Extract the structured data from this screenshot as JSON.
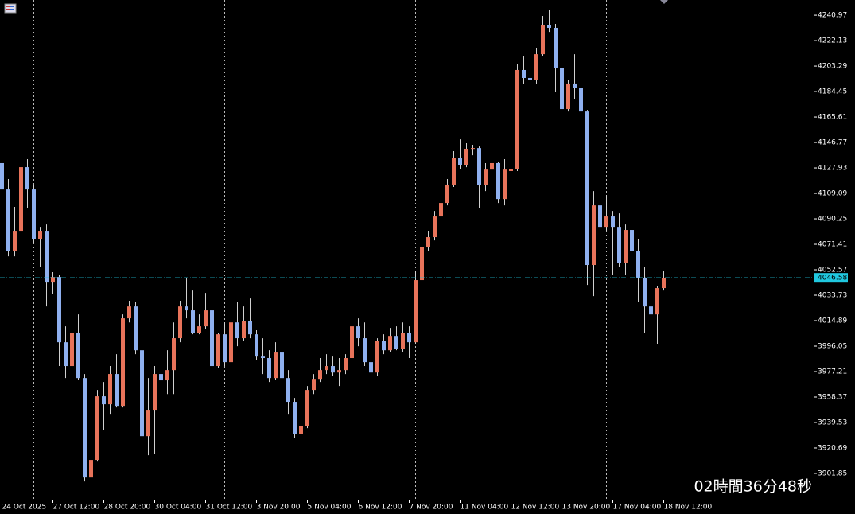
{
  "chart_data": {
    "type": "candlestick",
    "categories": [
      "24 Oct 2025",
      null,
      null,
      null,
      null,
      null,
      null,
      null,
      "27 Oct 12:00",
      null,
      null,
      null,
      null,
      null,
      null,
      null,
      "28 Oct 20:00",
      null,
      null,
      null,
      null,
      null,
      null,
      null,
      "30 Oct 04:00",
      null,
      null,
      null,
      null,
      null,
      null,
      null,
      "31 Oct 12:00",
      null,
      null,
      null,
      null,
      null,
      null,
      null,
      "3 Nov 20:00",
      null,
      null,
      null,
      null,
      null,
      null,
      null,
      "5 Nov 04:00",
      null,
      null,
      null,
      null,
      null,
      null,
      null,
      "6 Nov 12:00",
      null,
      null,
      null,
      null,
      null,
      null,
      null,
      "7 Nov 20:00",
      null,
      null,
      null,
      null,
      null,
      null,
      null,
      "11 Nov 04:00",
      null,
      null,
      null,
      null,
      null,
      null,
      null,
      "12 Nov 12:00",
      null,
      null,
      null,
      null,
      null,
      null,
      null,
      "13 Nov 20:00",
      null,
      null,
      null,
      null,
      null,
      null,
      null,
      "17 Nov 04:00",
      null,
      null,
      null,
      null,
      null,
      null,
      null,
      "18 Nov 12:00"
    ],
    "open": [
      4131.5,
      4112.0,
      4066.7,
      4081.4,
      4128.5,
      4112.0,
      4075.5,
      4081.4,
      4043.1,
      4047.2,
      3998.9,
      3981.3,
      4006.0,
      3972.4,
      3898.8,
      3911.8,
      3958.9,
      3953.0,
      3975.4,
      3951.8,
      4016.6,
      4025.4,
      3993.0,
      3929.4,
      3948.9,
      3975.4,
      3970.7,
      3978.3,
      4001.9,
      4025.4,
      4022.5,
      4006.0,
      4010.7,
      4022.5,
      3981.3,
      4004.8,
      3984.2,
      4013.6,
      4001.9,
      4014.8,
      4004.8,
      3988.3,
      3987.2,
      3972.4,
      3991.3,
      3972.4,
      3954.8,
      3931.2,
      3937.1,
      3963.6,
      3971.8,
      3978.3,
      3981.3,
      3976.5,
      3978.3,
      3987.2,
      4010.7,
      4001.9,
      3984.2,
      3976.5,
      4000.1,
      3993.0,
      4003.6,
      3994.2,
      4006.0,
      3998.9,
      4044.9,
      4069.6,
      4076.7,
      4092.0,
      4102.0,
      4115.6,
      4135.6,
      4130.3,
      4142.1,
      4142.6,
      4115.0,
      4126.7,
      4131.5,
      4104.9,
      4125.6,
      4127.3,
      4200.4,
      4194.5,
      4193.3,
      4212.1,
      4233.4,
      4231.6,
      4202.1,
      4171.5,
      4190.4,
      4187.4,
      4169.7,
      4056.1,
      4100.2,
      4084.3,
      4092.0,
      4084.3,
      4057.8,
      4082.0,
      4066.7,
      4046.1,
      4025.4,
      4019.5,
      4039.0
    ],
    "high": [
      4135.6,
      4119.7,
      4099.1,
      4137.3,
      4134.4,
      4115.6,
      4084.3,
      4086.1,
      4050.8,
      4049.0,
      4010.7,
      4010.7,
      4019.5,
      3975.4,
      3922.4,
      3963.6,
      3969.5,
      3981.3,
      3990.1,
      4019.5,
      4029.6,
      4028.4,
      3996.0,
      3972.4,
      3981.3,
      3980.1,
      3993.0,
      4013.6,
      4029.6,
      4046.1,
      4037.2,
      4019.5,
      4035.4,
      4025.4,
      4006.0,
      4013.6,
      4019.5,
      4028.4,
      4025.4,
      4031.3,
      4007.8,
      4001.9,
      3993.0,
      3998.9,
      3993.0,
      3978.3,
      3957.7,
      3948.9,
      3966.5,
      3975.4,
      3987.2,
      3990.1,
      3988.3,
      3987.2,
      3990.1,
      4013.6,
      4016.6,
      4013.6,
      3998.9,
      4001.9,
      4004.8,
      4009.5,
      4010.7,
      4013.6,
      4010.7,
      4051.9,
      4072.6,
      4081.4,
      4096.1,
      4113.8,
      4119.7,
      4140.3,
      4149.1,
      4146.2,
      4145.0,
      4143.8,
      4131.5,
      4134.4,
      4132.6,
      4134.4,
      4137.3,
      4205.1,
      4211.0,
      4211.0,
      4216.9,
      4240.4,
      4245.1,
      4234.5,
      4205.1,
      4193.3,
      4212.1,
      4193.3,
      4170.9,
      4110.8,
      4106.1,
      4107.9,
      4096.1,
      4094.3,
      4086.1,
      4084.3,
      4075.5,
      4054.9,
      4037.2,
      4040.2,
      4051.9
    ],
    "low": [
      4063.7,
      4062.5,
      4062.5,
      4078.5,
      4097.9,
      4072.6,
      4054.9,
      4025.4,
      4034.3,
      3981.3,
      3972.4,
      3972.4,
      3970.7,
      3895.9,
      3887.0,
      3910.6,
      3934.1,
      3945.9,
      3950.6,
      3950.6,
      4013.6,
      3990.1,
      3927.1,
      3915.3,
      3916.5,
      3948.9,
      3960.6,
      3960.6,
      3998.9,
      4016.6,
      4004.8,
      4004.8,
      4008.9,
      3972.4,
      3980.1,
      3981.3,
      3982.4,
      3996.0,
      4000.1,
      4001.9,
      3986.0,
      3975.4,
      3969.5,
      3971.2,
      3970.7,
      3945.9,
      3928.3,
      3929.4,
      3935.3,
      3960.6,
      3969.5,
      3975.4,
      3974.2,
      3966.5,
      3975.4,
      3984.2,
      3996.0,
      3981.3,
      3975.4,
      3974.2,
      3990.1,
      3991.9,
      3993.0,
      3991.9,
      3987.2,
      3997.8,
      4043.1,
      4066.7,
      4074.3,
      4090.2,
      4100.2,
      4113.8,
      4127.3,
      4128.5,
      4137.3,
      4097.9,
      4110.8,
      4119.7,
      4102.0,
      4100.2,
      4119.7,
      4125.6,
      4190.4,
      4187.4,
      4190.4,
      4211.0,
      4228.6,
      4184.5,
      4146.2,
      4169.7,
      4178.6,
      4166.8,
      4041.3,
      4033.1,
      4075.5,
      4081.4,
      4049.0,
      4054.9,
      4049.0,
      4057.8,
      4028.4,
      4006.0,
      4013.6,
      3997.8,
      4037.2
    ],
    "close": [
      4112.0,
      4066.7,
      4081.4,
      4128.5,
      4112.0,
      4075.5,
      4081.4,
      4043.1,
      4047.2,
      3998.9,
      3981.3,
      4006.0,
      3972.4,
      3898.8,
      3911.8,
      3958.9,
      3953.0,
      3975.4,
      3951.8,
      4016.6,
      4025.4,
      3993.0,
      3929.4,
      3948.9,
      3975.4,
      3970.7,
      3978.3,
      4001.9,
      4025.4,
      4022.5,
      4006.0,
      4010.7,
      4022.5,
      3981.3,
      4004.8,
      3984.2,
      4013.6,
      4001.9,
      4014.8,
      4004.8,
      3988.3,
      3987.2,
      3972.4,
      3991.3,
      3972.4,
      3954.8,
      3931.2,
      3937.1,
      3963.6,
      3971.8,
      3978.3,
      3981.3,
      3976.5,
      3978.3,
      3987.2,
      4010.7,
      4001.9,
      3984.2,
      3976.5,
      4000.1,
      3993.0,
      4003.6,
      3994.2,
      4006.0,
      3998.9,
      4044.9,
      4069.6,
      4076.7,
      4092.0,
      4102.0,
      4115.6,
      4135.6,
      4130.3,
      4142.1,
      4142.6,
      4115.0,
      4126.7,
      4131.5,
      4104.9,
      4126.7,
      4127.3,
      4200.4,
      4194.5,
      4193.3,
      4212.1,
      4233.4,
      4231.6,
      4202.1,
      4171.5,
      4190.4,
      4187.4,
      4169.7,
      4056.1,
      4100.2,
      4084.3,
      4092.0,
      4084.3,
      4057.8,
      4082.0,
      4066.7,
      4046.1,
      4025.4,
      4019.5,
      4039.0,
      4046.58
    ],
    "up_color": "#e8735a",
    "down_color": "#8fb0ef",
    "wick_color": "#d0d0d0",
    "ylim": [
      3882.4,
      4252.2
    ],
    "yticks": [
      4240.97,
      4222.13,
      4203.29,
      4184.45,
      4165.61,
      4146.77,
      4127.93,
      4109.09,
      4090.25,
      4071.41,
      4052.57,
      4033.73,
      4014.89,
      3996.05,
      3977.21,
      3958.37,
      3939.53,
      3920.69,
      3901.85
    ],
    "last_price": 4046.58,
    "last_price_color": "#20c8e0",
    "countdown": "02時間36分48秒"
  }
}
